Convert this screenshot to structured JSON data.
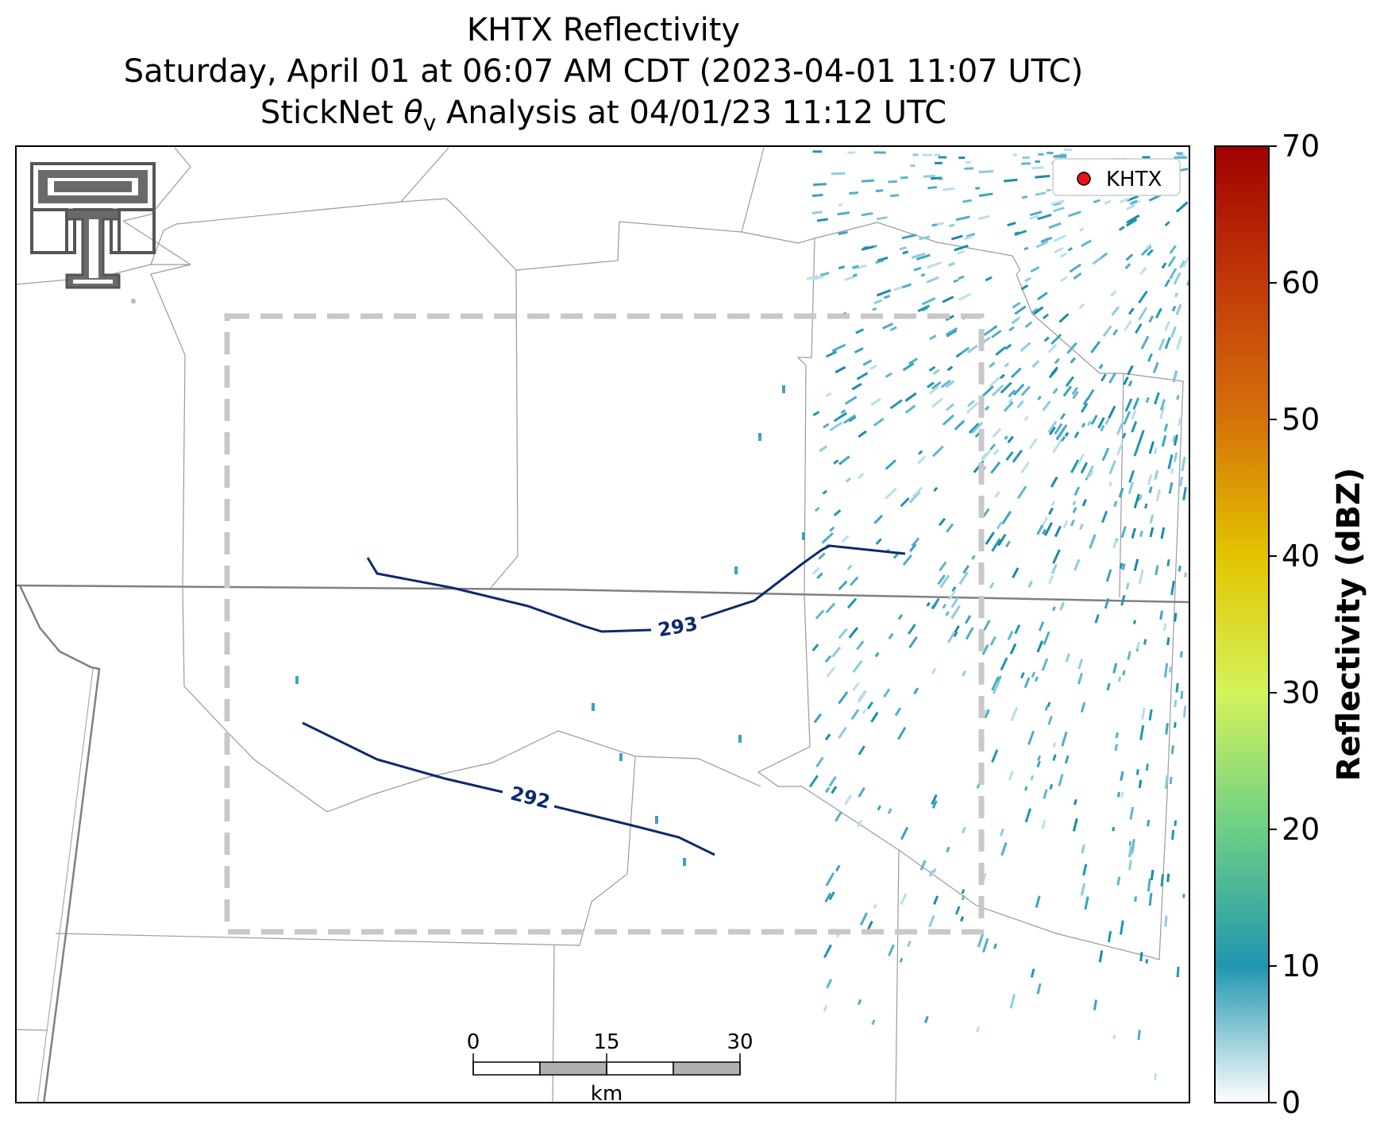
{
  "title": {
    "line1": "KHTX Reflectivity",
    "line2": "Saturday, April 01 at 06:07 AM CDT (2023-04-01 11:07 UTC)",
    "line3_prefix": "StickNet ",
    "line3_symbol": "θ",
    "line3_subscript": "v",
    "line3_suffix": " Analysis at 04/01/23 11:12 UTC"
  },
  "legend": {
    "radar_label": "KHTX",
    "marker_color": "#e8141b"
  },
  "colorbar": {
    "label": "Reflectivity (dBZ)",
    "min": 0,
    "max": 70,
    "ticks": [
      "0",
      "10",
      "20",
      "30",
      "40",
      "50",
      "60",
      "70"
    ],
    "colors": [
      "#ffffff",
      "#2196b0",
      "#6ccf86",
      "#d4f25a",
      "#e2c400",
      "#d5720a",
      "#c13a0a",
      "#a00000"
    ]
  },
  "contours": [
    {
      "label": "293"
    },
    {
      "label": "292"
    }
  ],
  "scale_bar": {
    "ticks": [
      "0",
      "15",
      "30"
    ],
    "unit": "km"
  },
  "colors": {
    "contour": "#0d2a6e",
    "analysis_box": "#c8c8c8",
    "county_lines": "#9a9a9a",
    "state_lines": "#808080",
    "logo": "#555555"
  }
}
